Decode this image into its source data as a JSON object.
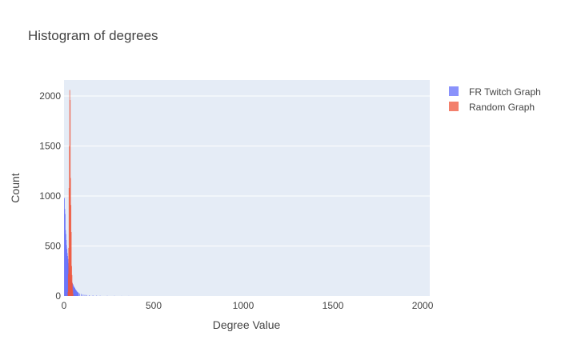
{
  "chart_data": {
    "type": "bar",
    "title": "Histogram of degrees",
    "xlabel": "Degree Value",
    "ylabel": "Count",
    "xlim": [
      0,
      2040
    ],
    "ylim": [
      0,
      2160
    ],
    "x_ticks": [
      0,
      500,
      1000,
      1500,
      2000
    ],
    "x_tick_labels": [
      "0",
      "500",
      "1000",
      "1500",
      "2000"
    ],
    "y_ticks": [
      0,
      500,
      1000,
      1500,
      2000
    ],
    "y_tick_labels": [
      "0",
      "500",
      "1000",
      "1500",
      "2000"
    ],
    "grid": true,
    "legend_position": "top-right",
    "bin_width": 2,
    "series": [
      {
        "name": "FR Twitch Graph",
        "color": "#636efa",
        "opacity": 0.75,
        "x": [
          1,
          3,
          5,
          7,
          9,
          11,
          13,
          15,
          17,
          19,
          21,
          23,
          25,
          27,
          29,
          31,
          33,
          35,
          37,
          39,
          41,
          43,
          45,
          47,
          49,
          51,
          53,
          55,
          57,
          59,
          61,
          63,
          65,
          67,
          69,
          71,
          73,
          75,
          77,
          79,
          85,
          95,
          105,
          115,
          125,
          140,
          160,
          180,
          200,
          240,
          280,
          320,
          360
        ],
        "y": [
          980,
          870,
          820,
          660,
          620,
          560,
          510,
          470,
          430,
          400,
          370,
          330,
          300,
          280,
          260,
          230,
          210,
          190,
          170,
          160,
          150,
          140,
          130,
          120,
          115,
          105,
          95,
          90,
          85,
          80,
          70,
          65,
          60,
          55,
          50,
          45,
          40,
          38,
          35,
          32,
          25,
          20,
          15,
          12,
          10,
          8,
          6,
          4,
          3,
          2,
          2,
          1,
          1
        ]
      },
      {
        "name": "Random Graph",
        "color": "#ef553b",
        "opacity": 0.75,
        "x": [
          21,
          23,
          25,
          27,
          29,
          31,
          33,
          35,
          37,
          39,
          41,
          43,
          45,
          47,
          49
        ],
        "y": [
          40,
          220,
          480,
          1080,
          1500,
          2060,
          1960,
          1180,
          910,
          640,
          300,
          210,
          130,
          60,
          20
        ]
      }
    ]
  }
}
